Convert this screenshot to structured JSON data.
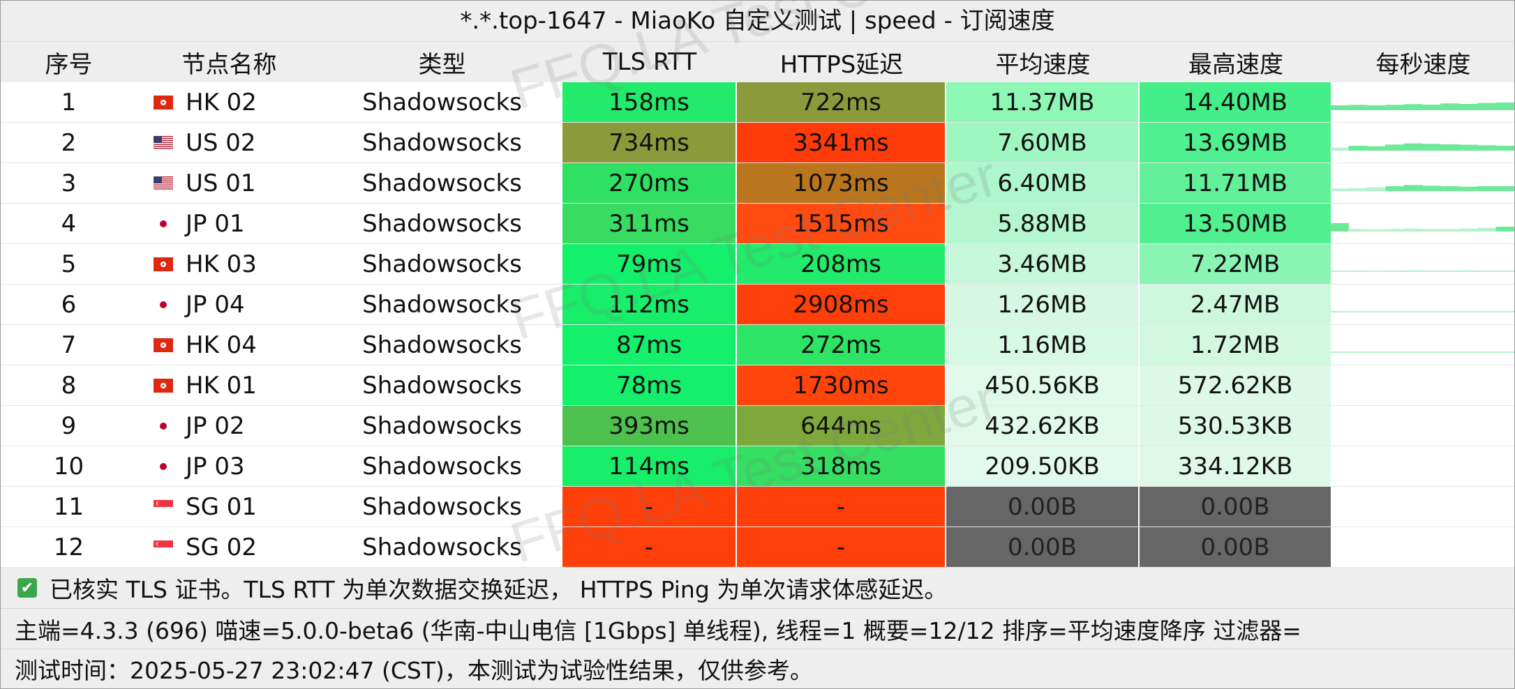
{
  "title": "*.*.top-1647 - MiaoKo 自定义测试 | speed - 订阅速度",
  "columns": [
    "序号",
    "节点名称",
    "类型",
    "TLS RTT",
    "HTTPS延迟",
    "平均速度",
    "最高速度",
    "每秒速度"
  ],
  "rows": [
    {
      "index": "1",
      "flag": "hk-flag-icon",
      "name": "HK 02",
      "type": "Shadowsocks",
      "tls": "158ms",
      "https": "722ms",
      "avg": "11.37MB",
      "max": "14.40MB",
      "colors": {
        "tls": "#22ea6a",
        "https": "#8b9a3a",
        "avg": "#8df7b5",
        "max": "#44ee88"
      }
    },
    {
      "index": "2",
      "flag": "us-flag-icon",
      "name": "US 02",
      "type": "Shadowsocks",
      "tls": "734ms",
      "https": "3341ms",
      "avg": "7.60MB",
      "max": "13.69MB",
      "colors": {
        "tls": "#8b9a3a",
        "https": "#ff3b0a",
        "avg": "#9ef7c0",
        "max": "#4ef08f"
      }
    },
    {
      "index": "3",
      "flag": "us-flag-icon",
      "name": "US 01",
      "type": "Shadowsocks",
      "tls": "270ms",
      "https": "1073ms",
      "avg": "6.40MB",
      "max": "11.71MB",
      "colors": {
        "tls": "#30e062",
        "https": "#b9761f",
        "avg": "#aef6cb",
        "max": "#62f09b"
      }
    },
    {
      "index": "4",
      "flag": "jp-flag-icon",
      "name": "JP 01",
      "type": "Shadowsocks",
      "tls": "311ms",
      "https": "1515ms",
      "avg": "5.88MB",
      "max": "13.50MB",
      "colors": {
        "tls": "#38dc60",
        "https": "#ff4a10",
        "avg": "#b4f6ce",
        "max": "#50ef90"
      }
    },
    {
      "index": "5",
      "flag": "hk-flag-icon",
      "name": "HK 03",
      "type": "Shadowsocks",
      "tls": "79ms",
      "https": "208ms",
      "avg": "3.46MB",
      "max": "7.22MB",
      "colors": {
        "tls": "#14f06c",
        "https": "#22ea6a",
        "avg": "#c6f7da",
        "max": "#8af4b4"
      }
    },
    {
      "index": "6",
      "flag": "jp-flag-icon",
      "name": "JP 04",
      "type": "Shadowsocks",
      "tls": "112ms",
      "https": "2908ms",
      "avg": "1.26MB",
      "max": "2.47MB",
      "colors": {
        "tls": "#18ee6a",
        "https": "#ff3f0a",
        "avg": "#d6f7e4",
        "max": "#cdf7df"
      }
    },
    {
      "index": "7",
      "flag": "hk-flag-icon",
      "name": "HK 04",
      "type": "Shadowsocks",
      "tls": "87ms",
      "https": "272ms",
      "avg": "1.16MB",
      "max": "1.72MB",
      "colors": {
        "tls": "#14f06c",
        "https": "#2ee464",
        "avg": "#d8f8e6",
        "max": "#d3f8e2"
      }
    },
    {
      "index": "8",
      "flag": "hk-flag-icon",
      "name": "HK 01",
      "type": "Shadowsocks",
      "tls": "78ms",
      "https": "1730ms",
      "avg": "450.56KB",
      "max": "572.62KB",
      "colors": {
        "tls": "#14f06c",
        "https": "#ff440c",
        "avg": "#e0f9eb",
        "max": "#ddf8e8"
      }
    },
    {
      "index": "9",
      "flag": "jp-flag-icon",
      "name": "JP 02",
      "type": "Shadowsocks",
      "tls": "393ms",
      "https": "644ms",
      "avg": "432.62KB",
      "max": "530.53KB",
      "colors": {
        "tls": "#4ec04e",
        "https": "#7ea83c",
        "avg": "#e0f9eb",
        "max": "#ddf8e8"
      }
    },
    {
      "index": "10",
      "flag": "jp-flag-icon",
      "name": "JP 03",
      "type": "Shadowsocks",
      "tls": "114ms",
      "https": "318ms",
      "avg": "209.50KB",
      "max": "334.12KB",
      "colors": {
        "tls": "#18ee6a",
        "https": "#36de62",
        "avg": "#e2f9ed",
        "max": "#dff8ea"
      }
    },
    {
      "index": "11",
      "flag": "sg-flag-icon",
      "name": "SG 01",
      "type": "Shadowsocks",
      "tls": "-",
      "https": "-",
      "avg": "0.00B",
      "max": "0.00B",
      "colors": {
        "tls": "#ff3f0a",
        "https": "#ff3f0a",
        "avg": "#666666",
        "max": "#666666"
      }
    },
    {
      "index": "12",
      "flag": "sg-flag-icon",
      "name": "SG 02",
      "type": "Shadowsocks",
      "tls": "-",
      "https": "-",
      "avg": "0.00B",
      "max": "0.00B",
      "colors": {
        "tls": "#ff3f0a",
        "https": "#ff3f0a",
        "avg": "#666666",
        "max": "#666666"
      }
    }
  ],
  "footer": {
    "line1": "已核实 TLS 证书。TLS RTT 为单次数据交换延迟， HTTPS Ping 为单次请求体感延迟。",
    "line2": "主端=4.3.3 (696) 喵速=5.0.0-beta6 (华南-中山电信 [1Gbps] 单线程), 线程=1 概要=12/12 排序=平均速度降序 过滤器=",
    "line3": "测试时间：2025-05-27 23:02:47 (CST)，本测试为试验性结果，仅供参考。"
  },
  "watermark": "FFQ.LA Test Center",
  "accent_colors": {
    "good": "#14f06c",
    "bad": "#ff3f0a",
    "fail": "#666666",
    "check": "#3aa84a"
  }
}
